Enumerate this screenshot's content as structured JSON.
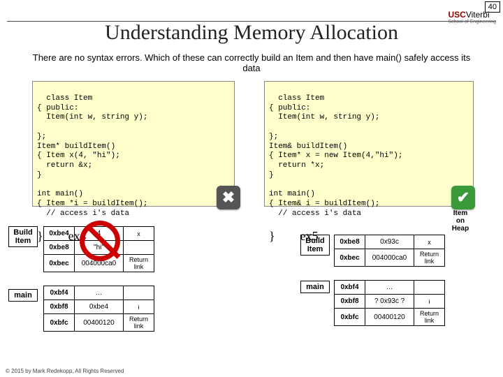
{
  "page_number": "40",
  "logo": {
    "usc": "USC",
    "viterbi": "Viterbi",
    "sub": "School of Engineering"
  },
  "title": "Understanding Memory Allocation",
  "subtitle": "There are no syntax errors.  Which of these can correctly build an Item and then have main() safely access its data",
  "code_ex4": "class Item\n{ public:\n  Item(int w, string y);\n\n};\nItem* buildItem()\n{ Item x(4, \"hi\");\n  return &x;\n}\n\nint main()\n{ Item *i = buildItem();\n  // access i's data\n",
  "ex4_label": "}        ex4",
  "code_ex5": "class Item\n{ public:\n  Item(int w, string y);\n\n};\nItem& buildItem()\n{ Item* x = new Item(4,\"hi\");\n  return *x;\n}\n\nint main()\n{ Item& i = buildItem();\n  // access i's data\n",
  "ex5_label": "}        ex5",
  "heap_hdr": "Item\non\nHeap",
  "side_build": "Build\nItem",
  "side_main": "main",
  "left_table": [
    [
      "0xbe4",
      "4",
      "x"
    ],
    [
      "0xbe8",
      "\"hi\"",
      ""
    ],
    [
      "0xbec",
      "004000ca0",
      "Return link"
    ],
    [
      "0xbf4",
      "…",
      ""
    ],
    [
      "0xbf8",
      "0xbe4",
      "i"
    ],
    [
      "0xbfc",
      "00400120",
      "Return link"
    ]
  ],
  "right_table": [
    [
      "0xbe8",
      "0x93c",
      "x"
    ],
    [
      "0xbec",
      "004000ca0",
      "Return link"
    ],
    [
      "0xbf4",
      "…",
      ""
    ],
    [
      "0xbf8",
      "? 0x93c ?",
      "i"
    ],
    [
      "0xbfc",
      "00400120",
      "Return link"
    ]
  ],
  "footer": "© 2015 by Mark Redekopp, All Rights Reserved"
}
